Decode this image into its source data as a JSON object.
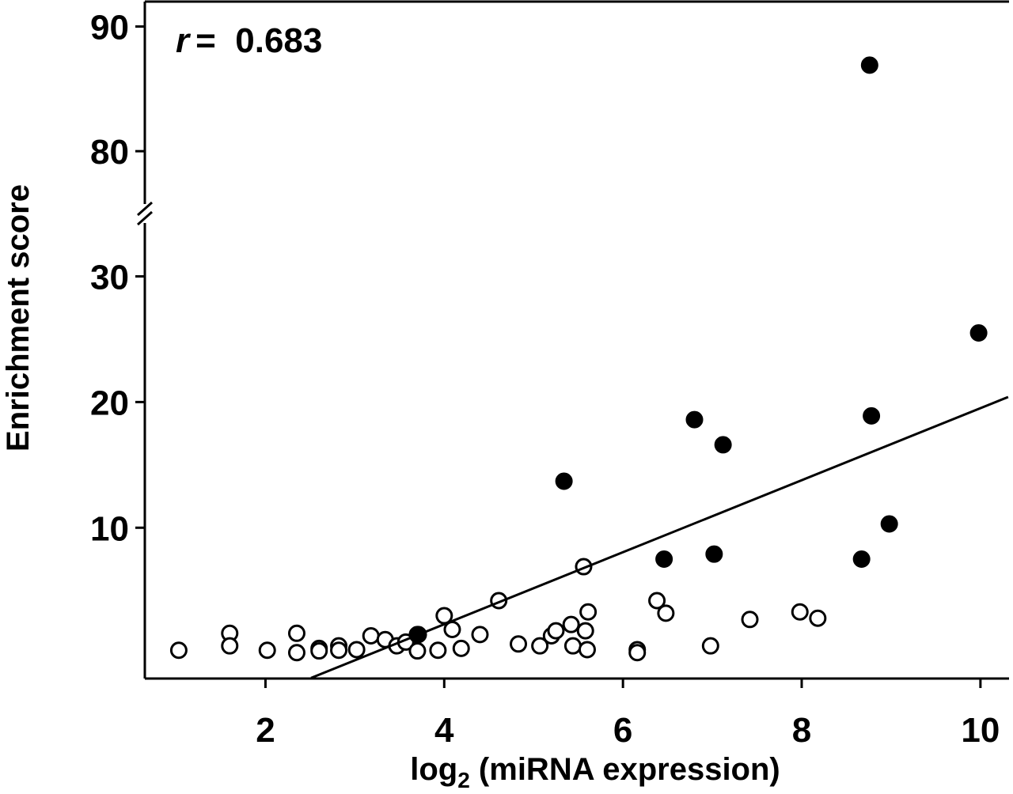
{
  "chart_data": {
    "type": "scatter",
    "xlabel": {
      "main": "log",
      "sub": "2",
      "rest": " (miRNA expression)"
    },
    "ylabel": "Enrichment score",
    "annotation": {
      "symbol": "r",
      "text": "=  0.683"
    },
    "xlim": [
      0.65,
      10.32
    ],
    "xticks": [
      2,
      4,
      6,
      8,
      10
    ],
    "ylim": [
      -2,
      92
    ],
    "y_break": [
      35,
      75
    ],
    "yticks": [
      10,
      20,
      30,
      80,
      90
    ],
    "series": [
      {
        "fill": "#ffffff",
        "color": "#000000",
        "x": [
          1.03,
          1.6,
          1.6,
          2.02,
          2.35,
          2.35,
          2.6,
          2.6,
          2.82,
          2.82,
          3.02,
          3.18,
          3.34,
          3.47,
          3.57,
          3.7,
          3.7,
          3.93,
          4.0,
          4.09,
          4.19,
          4.4,
          4.61,
          4.83,
          5.07,
          5.2,
          5.25,
          5.42,
          5.44,
          5.56,
          5.58,
          5.61,
          5.6,
          6.16,
          6.16,
          6.38,
          6.48,
          6.98,
          7.42,
          7.98,
          8.18
        ],
        "values": [
          0.25,
          1.6,
          0.6,
          0.25,
          1.6,
          0.06,
          0.4,
          0.2,
          0.6,
          0.25,
          0.3,
          1.4,
          1.1,
          0.6,
          0.9,
          1.5,
          0.2,
          0.25,
          3.0,
          1.9,
          0.4,
          1.5,
          4.2,
          0.75,
          0.6,
          1.4,
          1.8,
          2.3,
          0.6,
          6.9,
          1.8,
          3.3,
          0.3,
          0.3,
          0.06,
          4.2,
          3.2,
          0.6,
          2.7,
          3.3,
          2.8
        ]
      },
      {
        "fill": "#000000",
        "color": "#000000",
        "x": [
          3.71,
          5.34,
          6.46,
          6.8,
          7.02,
          7.12,
          8.67,
          8.76,
          8.78,
          8.98,
          9.98
        ],
        "values": [
          1.5,
          13.7,
          7.5,
          18.6,
          7.9,
          16.6,
          7.5,
          86.9,
          18.9,
          10.3,
          25.5
        ]
      }
    ],
    "trend_line": {
      "x": [
        2.51,
        10.31
      ],
      "y": [
        -1.95,
        20.4
      ],
      "color": "#000000"
    }
  }
}
